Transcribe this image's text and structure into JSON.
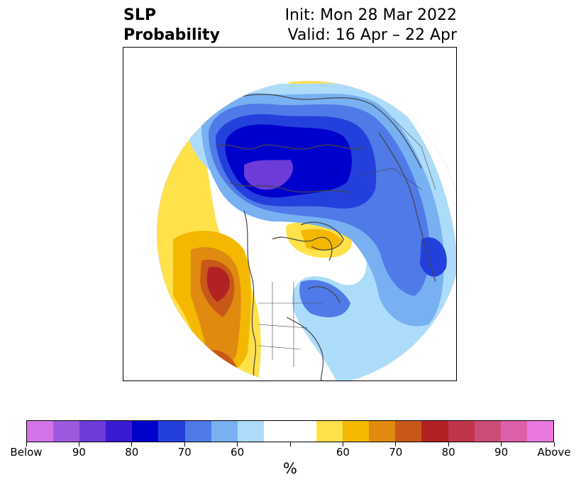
{
  "header": {
    "title_line1": "SLP",
    "title_line2": "Probability",
    "init": "Init: Mon 28 Mar 2022",
    "valid": "Valid: 16 Apr – 22 Apr"
  },
  "colorbar": {
    "colors": [
      "#d273e8",
      "#9e59e0",
      "#6d3bd8",
      "#3a1ad2",
      "#0000cc",
      "#2440dc",
      "#4f7ae8",
      "#78b0f2",
      "#addcfa",
      "#ffffff",
      "#ffffff",
      "#ffe14a",
      "#f4b800",
      "#e08a10",
      "#c85818",
      "#b22222",
      "#c0354a",
      "#cc4c7a",
      "#dc5fa8",
      "#e878dd"
    ],
    "tick_labels": [
      "Below",
      "90",
      "80",
      "70",
      "60",
      "",
      "60",
      "70",
      "80",
      "90",
      "Above"
    ],
    "unit_label": "%"
  },
  "map_colors": {
    "blue_light": "#addcfa",
    "blue_mid": "#78b0f2",
    "blue_strong": "#4f7ae8",
    "blue_deep": "#2440dc",
    "blue_darkest": "#0000cc",
    "purple": "#6d3bd8",
    "yellow": "#ffe14a",
    "gold": "#f4b800",
    "orange": "#e08a10",
    "rust": "#c85818",
    "red": "#b22222",
    "border": "#444444"
  }
}
